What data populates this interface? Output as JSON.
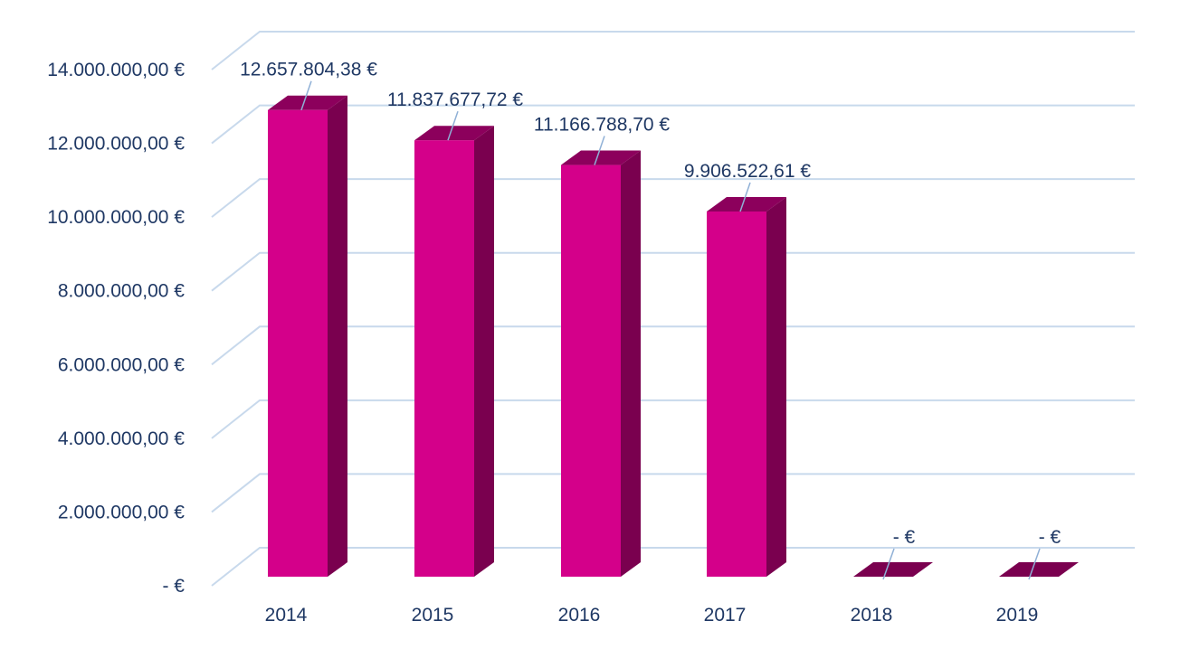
{
  "chart_data": {
    "type": "bar",
    "title": "",
    "xlabel": "",
    "ylabel": "",
    "categories": [
      "2014",
      "2015",
      "2016",
      "2017",
      "2018",
      "2019"
    ],
    "values": [
      12657804.38,
      11837677.72,
      11166788.7,
      9906522.61,
      0,
      0
    ],
    "data_labels": [
      "12.657.804,38 €",
      "11.837.677,72 €",
      "11.166.788,70 €",
      "9.906.522,61 €",
      "-  €",
      "-  €"
    ],
    "ylim": [
      0,
      14000000
    ],
    "y_ticks": [
      0,
      2000000,
      4000000,
      6000000,
      8000000,
      10000000,
      12000000,
      14000000
    ],
    "y_tick_labels": [
      "-  €",
      "2.000.000,00 €",
      "4.000.000,00 €",
      "6.000.000,00 €",
      "8.000.000,00 €",
      "10.000.000,00 €",
      "12.000.000,00 €",
      "14.000.000,00 €"
    ],
    "grid": true,
    "legend": "none",
    "style": "3d-column",
    "colors": {
      "bar_front": "#d4008a",
      "bar_side": "#7a004f",
      "bar_top": "#8c005c",
      "grid": "#c8d9ec",
      "text": "#1f3864"
    }
  }
}
